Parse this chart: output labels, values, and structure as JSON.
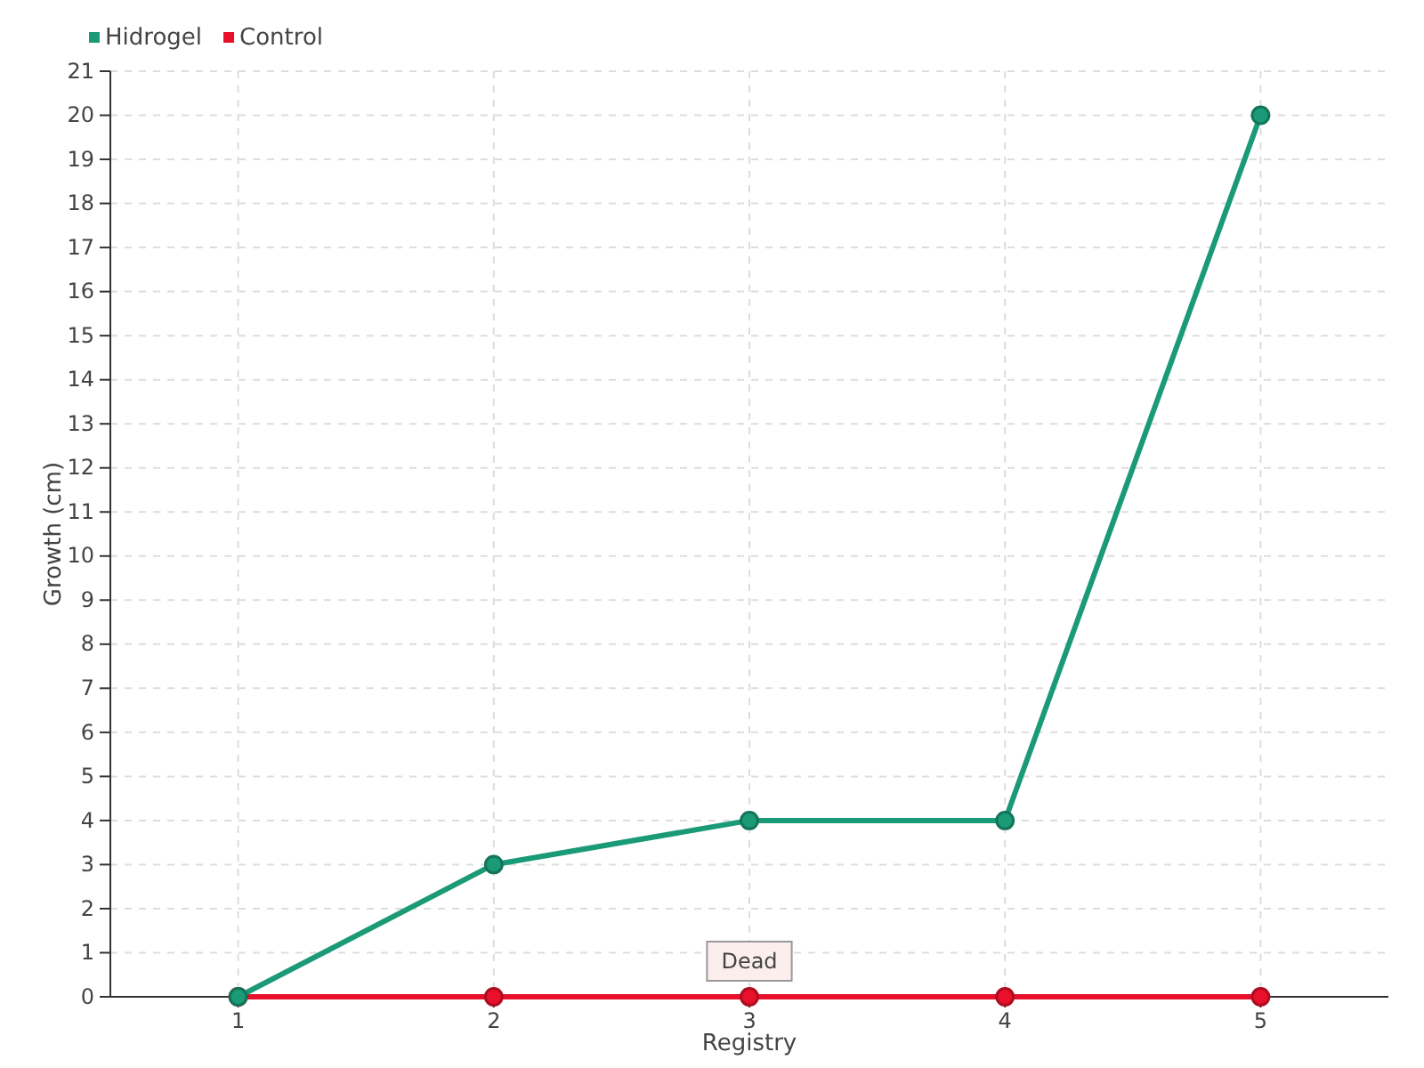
{
  "chart_data": {
    "type": "line",
    "xlabel": "Registry",
    "ylabel": "Growth (cm)",
    "categories": [
      "1",
      "2",
      "3",
      "4",
      "5"
    ],
    "series": [
      {
        "name": "Hidrogel",
        "color": "#1b9a77",
        "values": [
          0,
          3,
          4,
          4,
          20
        ]
      },
      {
        "name": "Control",
        "color": "#e8102a",
        "values": [
          0,
          0,
          0,
          0,
          0
        ]
      }
    ],
    "ylim": [
      0,
      21
    ],
    "yticks": [
      0,
      1,
      2,
      3,
      4,
      5,
      6,
      7,
      8,
      9,
      10,
      11,
      12,
      13,
      14,
      15,
      16,
      17,
      18,
      19,
      20,
      21
    ],
    "grid": true,
    "legend": "top left",
    "marker": "circle",
    "annotations": [
      {
        "text": "Dead",
        "x": "3",
        "y": 0
      }
    ]
  }
}
